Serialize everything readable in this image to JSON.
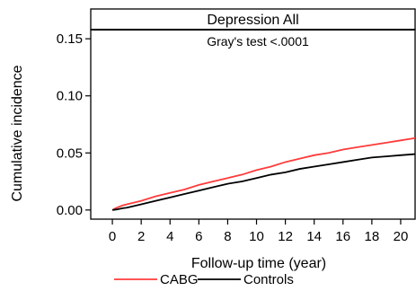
{
  "chart_data": {
    "type": "line",
    "title": "Depression All",
    "annotation": "Gray's test <.0001",
    "xlabel": "Follow-up time (year)",
    "ylabel": "Cumulative incidence",
    "xlim": [
      -1.5,
      21
    ],
    "ylim": [
      -0.008,
      0.158
    ],
    "xticks": [
      0,
      2,
      4,
      6,
      8,
      10,
      12,
      14,
      16,
      18,
      20
    ],
    "xtick_labels": [
      "0",
      "2",
      "4",
      "6",
      "8",
      "10",
      "12",
      "14",
      "16",
      "18",
      "20"
    ],
    "yticks": [
      0.0,
      0.05,
      0.1,
      0.15
    ],
    "ytick_labels": [
      "0.00",
      "0.05",
      "0.10",
      "0.15"
    ],
    "grid": false,
    "legend_position": "bottom",
    "series": [
      {
        "name": "CABG",
        "color": "#ff3b3b",
        "x": [
          0,
          0.3,
          0.7,
          1,
          2,
          3,
          4,
          5,
          6,
          7,
          8,
          9,
          10,
          11,
          12,
          13,
          14,
          15,
          16,
          17,
          18,
          19,
          20,
          21
        ],
        "y": [
          0.0,
          0.002,
          0.004,
          0.005,
          0.008,
          0.012,
          0.015,
          0.018,
          0.022,
          0.025,
          0.028,
          0.031,
          0.035,
          0.038,
          0.042,
          0.045,
          0.048,
          0.05,
          0.053,
          0.055,
          0.057,
          0.059,
          0.061,
          0.063
        ]
      },
      {
        "name": "Controls",
        "color": "#000000",
        "x": [
          0,
          0.3,
          0.7,
          1,
          2,
          3,
          4,
          5,
          6,
          7,
          8,
          9,
          10,
          11,
          12,
          13,
          14,
          15,
          16,
          17,
          18,
          19,
          20,
          21
        ],
        "y": [
          0.0,
          0.0005,
          0.0015,
          0.002,
          0.005,
          0.008,
          0.011,
          0.014,
          0.017,
          0.02,
          0.023,
          0.025,
          0.028,
          0.031,
          0.033,
          0.036,
          0.038,
          0.04,
          0.042,
          0.044,
          0.046,
          0.047,
          0.048,
          0.049
        ]
      }
    ]
  }
}
